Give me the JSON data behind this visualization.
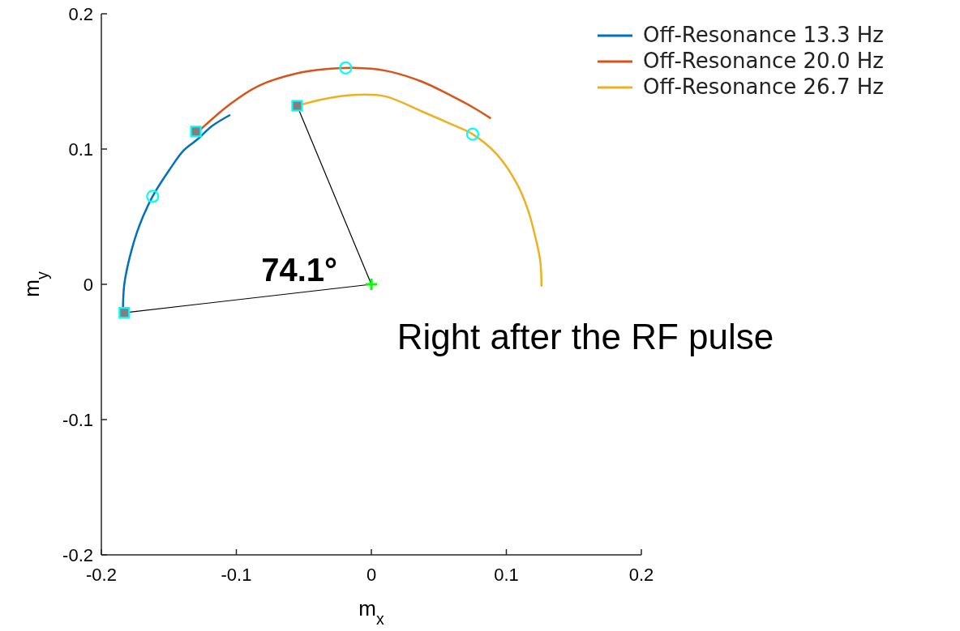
{
  "chart_data": {
    "type": "line",
    "xlabel": "m$_{x}$",
    "ylabel": "m$_{y}$",
    "xlim": [
      -0.2,
      0.2
    ],
    "ylim": [
      -0.2,
      0.2
    ],
    "xticks": [
      -0.2,
      -0.1,
      0,
      0.1,
      0.2
    ],
    "yticks": [
      -0.2,
      -0.1,
      0,
      0.1,
      0.2
    ],
    "grid": false,
    "legend": "top right",
    "line_style": "solid",
    "series": [
      {
        "name": "Off-Resonance 13.3 Hz",
        "color": "#0072bd",
        "x": [
          -0.184,
          -0.183,
          -0.179,
          -0.172,
          -0.162,
          -0.15,
          -0.139,
          -0.129,
          -0.118,
          -0.105
        ],
        "values": [
          -0.018,
          0.0,
          0.02,
          0.043,
          0.065,
          0.084,
          0.099,
          0.107,
          0.117,
          0.125
        ]
      },
      {
        "name": "Off-Resonance 20.0 Hz",
        "color": "#d95319",
        "x": [
          -0.127,
          -0.105,
          -0.083,
          -0.055,
          -0.035,
          -0.013,
          0.01,
          0.037,
          0.06,
          0.075,
          0.088
        ],
        "values": [
          0.114,
          0.133,
          0.147,
          0.156,
          0.159,
          0.16,
          0.158,
          0.15,
          0.139,
          0.131,
          0.123
        ]
      },
      {
        "name": "Off-Resonance 26.7 Hz",
        "color": "#edb120",
        "x": [
          -0.055,
          -0.035,
          -0.013,
          0.01,
          0.037,
          0.06,
          0.075,
          0.093,
          0.108,
          0.116,
          0.121,
          0.125,
          0.126
        ],
        "values": [
          0.132,
          0.137,
          0.14,
          0.139,
          0.128,
          0.118,
          0.111,
          0.096,
          0.074,
          0.055,
          0.037,
          0.018,
          -0.001
        ]
      },
      {
        "type": "line",
        "color": "#000000",
        "x": [
          -0.183,
          0,
          -0.055
        ],
        "values": [
          -0.021,
          0,
          0.132
        ]
      },
      {
        "type": "scatter",
        "color": "#00ffff",
        "marker": "circle",
        "x": [
          -0.162,
          -0.019,
          0.075
        ],
        "values": [
          0.065,
          0.16,
          0.111
        ]
      },
      {
        "type": "scatter",
        "color": "#00ffff",
        "marker": "square",
        "x": [
          -0.183,
          -0.13,
          -0.055
        ],
        "values": [
          -0.021,
          0.113,
          0.132
        ]
      },
      {
        "type": "scatter",
        "color": "#00ff00",
        "marker": "cross",
        "x": [
          0
        ],
        "values": [
          0
        ]
      }
    ],
    "annotations": [
      {
        "text": "74.1°",
        "x": 0,
        "y": 0
      },
      "Right after the RF pulse"
    ]
  }
}
